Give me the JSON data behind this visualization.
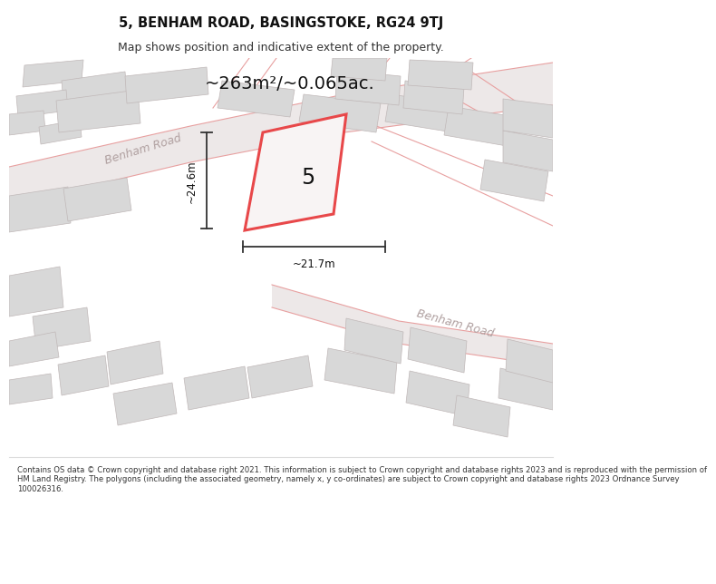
{
  "title_line1": "5, BENHAM ROAD, BASINGSTOKE, RG24 9TJ",
  "title_line2": "Map shows position and indicative extent of the property.",
  "area_text": "~263m²/~0.065ac.",
  "dim_width": "~21.7m",
  "dim_height": "~24.6m",
  "property_number": "5",
  "road_label1": "Benham Road",
  "road_label2": "Benham Road",
  "footer_text": "Contains OS data © Crown copyright and database right 2021. This information is subject to Crown copyright and database rights 2023 and is reproduced with the permission of\nHM Land Registry. The polygons (including the associated geometry, namely x, y co-ordinates) are subject to Crown copyright and database rights 2023 Ordnance Survey\n100026316.",
  "bg_color": "#f5f5f5",
  "map_bg": "#f0eeee",
  "building_color": "#d8d8d8",
  "building_edge": "#c0b8b8",
  "road_fill": "#ffffff",
  "plot_line_color": "#e8484a",
  "dimension_color": "#333333",
  "road_text_color": "#b0a0a0",
  "footer_bg": "#ffffff",
  "title_bg": "#ffffff"
}
